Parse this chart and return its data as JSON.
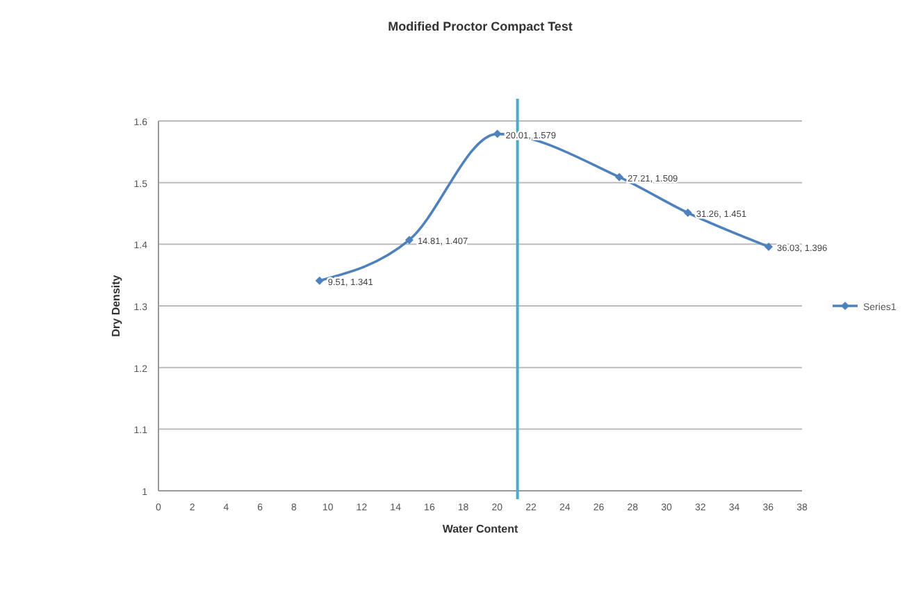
{
  "chart_data": {
    "type": "line",
    "title": "Modified Proctor Compact Test",
    "xlabel": "Water Content",
    "ylabel": "Dry Density",
    "x": [
      9.51,
      14.81,
      20.01,
      27.21,
      31.26,
      36.03
    ],
    "series": [
      {
        "name": "Series1",
        "color": "#4f81bd",
        "values": [
          1.341,
          1.407,
          1.579,
          1.509,
          1.451,
          1.396
        ],
        "value_labels": [
          "9.51, 1.341",
          "14.81, 1.407",
          "20.01, 1.579",
          "27.21, 1.509",
          "31.26, 1.451",
          "36.03, 1.396"
        ]
      }
    ],
    "xlim": [
      0,
      38
    ],
    "xticks": [
      0,
      2,
      4,
      6,
      8,
      10,
      12,
      14,
      16,
      18,
      20,
      22,
      24,
      26,
      28,
      30,
      32,
      34,
      36,
      38
    ],
    "ylim": [
      1,
      1.6
    ],
    "yticks": [
      1,
      1.1,
      1.2,
      1.3,
      1.4,
      1.5,
      1.6
    ],
    "ref_lines": [
      {
        "axis": "x",
        "value": 21.2,
        "color": "#4bacc6"
      }
    ],
    "grid": "y",
    "legend": "right",
    "marker": "diamond",
    "line_style": "solid"
  }
}
